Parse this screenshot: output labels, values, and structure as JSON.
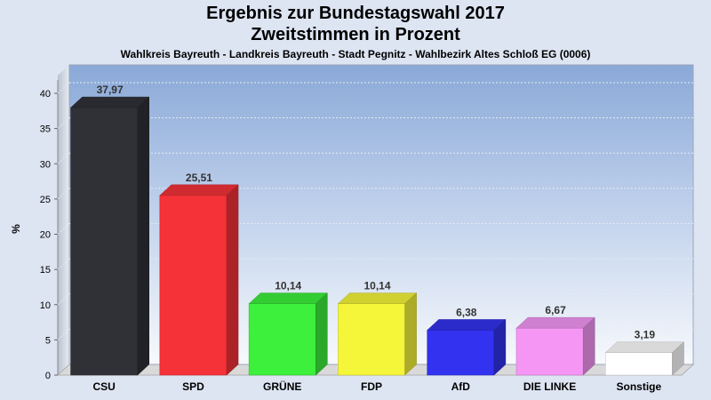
{
  "chart_data": {
    "type": "bar",
    "title": "Ergebnis zur Bundestagswahl 2017",
    "subtitle": "Zweitstimmen in Prozent",
    "caption": "Wahlkreis Bayreuth - Landkreis Bayreuth - Stadt Pegnitz - Wahlbezirk Altes Schloß EG (0006)",
    "ylabel": "%",
    "xlabel": "",
    "ylim": [
      0,
      40
    ],
    "yticks": [
      0,
      5,
      10,
      15,
      20,
      25,
      30,
      35,
      40
    ],
    "grid": true,
    "legend": "none",
    "categories": [
      "CSU",
      "SPD",
      "GRÜNE",
      "FDP",
      "AfD",
      "DIE LINKE",
      "Sonstige"
    ],
    "values": [
      37.97,
      25.51,
      10.14,
      10.14,
      6.38,
      6.67,
      3.19
    ],
    "value_labels": [
      "37,97",
      "25,51",
      "10,14",
      "10,14",
      "6,38",
      "6,67",
      "3,19"
    ],
    "colors": [
      "#2f3137",
      "#f53238",
      "#3cf03c",
      "#f5f53a",
      "#3232f0",
      "#f596f5",
      "#ffffff"
    ]
  }
}
